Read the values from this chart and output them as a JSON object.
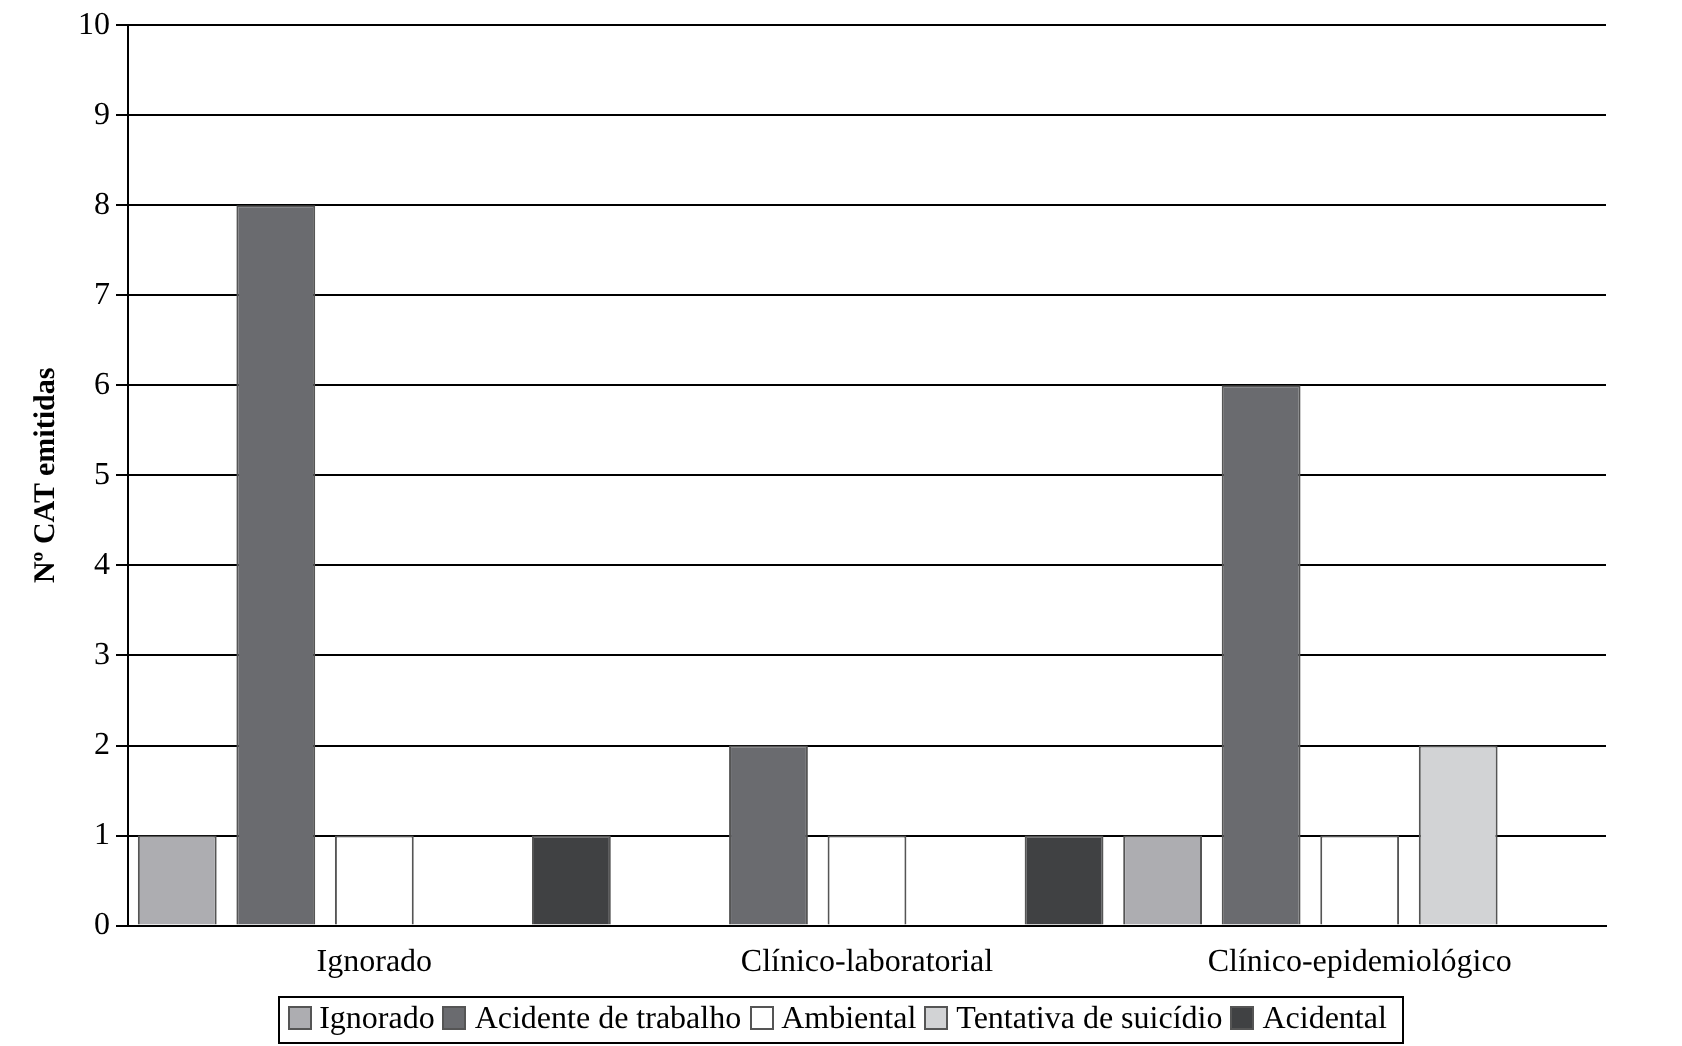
{
  "chart_data": {
    "type": "bar",
    "ylabel": "Nº CAT emitidas",
    "categories": [
      "Ignorado",
      "Clínico-laboratorial",
      "Clínico-epidemiológico"
    ],
    "series": [
      {
        "name": "Ignorado",
        "color": "#adadb1",
        "values": [
          1,
          0,
          1
        ]
      },
      {
        "name": "Acidente de trabalho",
        "color": "#6a6b6f",
        "values": [
          8,
          2,
          6
        ]
      },
      {
        "name": "Ambiental",
        "color": "#ffffff",
        "values": [
          1,
          1,
          1
        ]
      },
      {
        "name": "Tentativa de suicídio",
        "color": "#d2d3d5",
        "values": [
          0,
          0,
          2
        ]
      },
      {
        "name": "Acidental",
        "color": "#404143",
        "values": [
          1,
          1,
          0
        ]
      }
    ],
    "ylim": [
      0,
      10
    ],
    "yticks": [
      0,
      1,
      2,
      3,
      4,
      5,
      6,
      7,
      8,
      9,
      10
    ],
    "grid": "y",
    "legend": "bottom"
  }
}
